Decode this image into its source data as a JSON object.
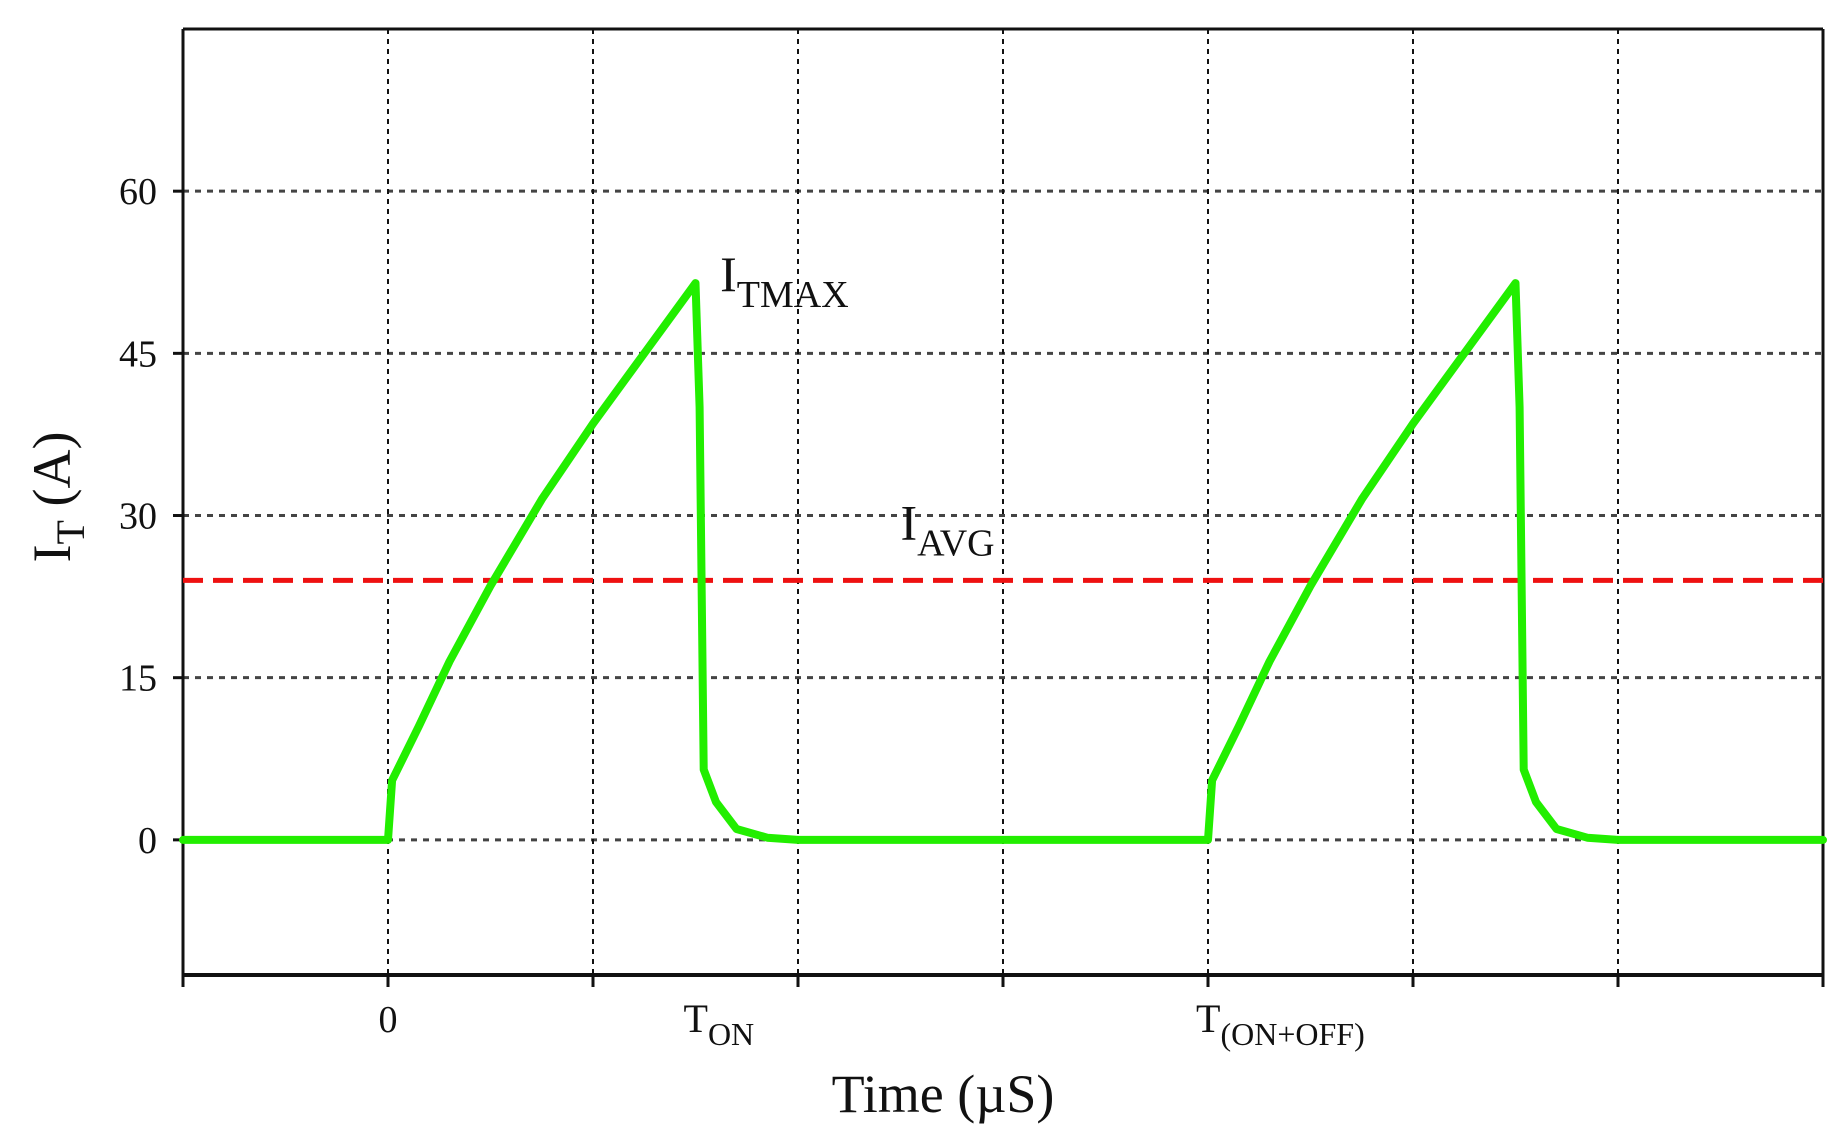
{
  "chart_data": {
    "type": "line",
    "xlabel": "Time (µS)",
    "ylabel": {
      "main": "I",
      "sub": "T",
      "rest": " (A)"
    },
    "ylim": [
      -12.5,
      75
    ],
    "xlim": [
      -1,
      7
    ],
    "grid": true,
    "y_ticks": [
      0,
      15,
      30,
      45,
      60
    ],
    "x_gridlines": [
      0,
      1,
      2,
      3,
      4,
      5,
      6,
      7
    ],
    "x_tick_marks": [
      -1,
      0,
      1,
      2,
      3,
      4,
      5,
      6,
      7
    ],
    "x_ticks": [
      {
        "x": 0,
        "main": "0",
        "sub": ""
      },
      {
        "x": 1.5,
        "main": "T",
        "sub": "ON"
      },
      {
        "x": 4,
        "main": "T",
        "sub": "(ON+OFF)"
      }
    ],
    "series": [
      {
        "color": "#22ee00",
        "points": [
          [
            -1,
            0
          ],
          [
            0,
            0
          ],
          [
            0.02,
            5.5
          ],
          [
            0.15,
            10.5
          ],
          [
            0.3,
            16.5
          ],
          [
            0.5,
            23.5
          ],
          [
            0.75,
            31.5
          ],
          [
            1.0,
            38.5
          ],
          [
            1.25,
            45.0
          ],
          [
            1.5,
            51.5
          ],
          [
            1.52,
            40
          ],
          [
            1.54,
            6.5
          ],
          [
            1.6,
            3.5
          ],
          [
            1.7,
            1.0
          ],
          [
            1.85,
            0.2
          ],
          [
            2.0,
            0
          ],
          [
            4.0,
            0
          ],
          [
            4.02,
            5.5
          ],
          [
            4.15,
            10.5
          ],
          [
            4.3,
            16.5
          ],
          [
            4.5,
            23.5
          ],
          [
            4.75,
            31.5
          ],
          [
            5.0,
            38.5
          ],
          [
            5.25,
            45.0
          ],
          [
            5.5,
            51.5
          ],
          [
            5.52,
            40
          ],
          [
            5.54,
            6.5
          ],
          [
            5.6,
            3.5
          ],
          [
            5.7,
            1.0
          ],
          [
            5.85,
            0.2
          ],
          [
            6.0,
            0
          ],
          [
            7,
            0
          ]
        ]
      }
    ],
    "reference_lines": [
      {
        "y": 24,
        "color": "#ee1111",
        "style": "dashed"
      }
    ],
    "annotations": [
      {
        "main": "I",
        "sub": "TMAX",
        "x": 1.62,
        "y": 51.5
      },
      {
        "main": "I",
        "sub": "AVG",
        "x": 2.5,
        "y": 28.5
      }
    ],
    "colors": {
      "grid": "#444444",
      "axis": "#111111",
      "curve": "#22ee00",
      "average": "#ee1111"
    }
  }
}
